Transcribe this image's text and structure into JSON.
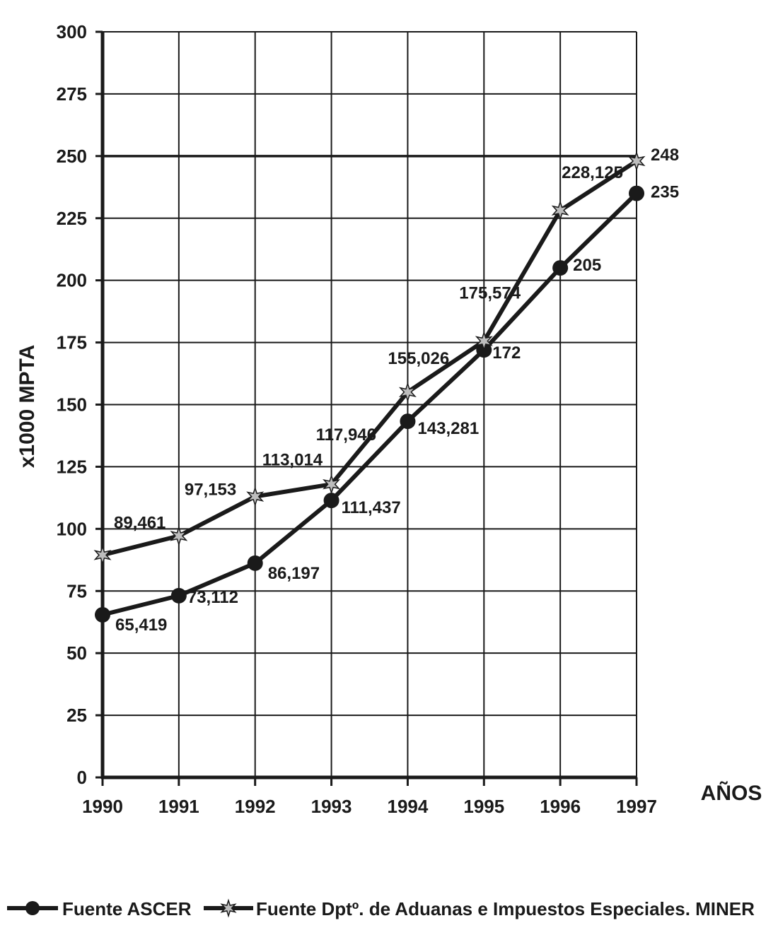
{
  "chart_data": {
    "type": "line",
    "title": "",
    "xlabel": "AÑOS",
    "ylabel": "x1000 MPTA",
    "categories": [
      "1990",
      "1991",
      "1992",
      "1993",
      "1994",
      "1995",
      "1996",
      "1997"
    ],
    "ylim": [
      0,
      300
    ],
    "yticks": [
      "0",
      "25",
      "50",
      "75",
      "100",
      "125",
      "150",
      "175",
      "200",
      "225",
      "250",
      "275",
      "300"
    ],
    "grid": true,
    "legend_position": "bottom",
    "series": [
      {
        "name": "Fuente ASCER",
        "marker": "circle",
        "values": [
          65.419,
          73.112,
          86.197,
          111.437,
          143.281,
          172,
          205,
          235
        ],
        "labels": [
          "65,419",
          "73,112",
          "86,197",
          "111,437",
          "143,281",
          "172",
          "205",
          "235"
        ]
      },
      {
        "name": "Fuente Dptº. de Aduanas e Impuestos Especiales. MINER",
        "marker": "star",
        "values": [
          89.461,
          97.153,
          113.014,
          117.946,
          155.026,
          175.574,
          228.125,
          248
        ],
        "labels": [
          "89,461",
          "97,153",
          "113,014",
          "117,946",
          "155,026",
          "175,574",
          "228,125",
          "248"
        ]
      }
    ],
    "colors": {
      "line": "#1a1a1a",
      "grid": "#1a1a1a",
      "background": "#ffffff"
    }
  }
}
